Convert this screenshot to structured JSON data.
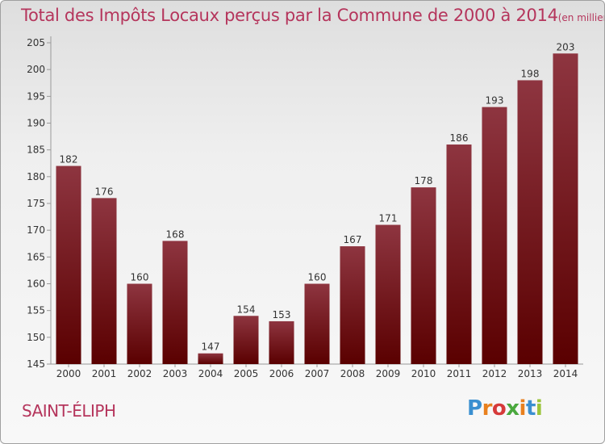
{
  "header": {
    "title": "Total des Impôts Locaux perçus par la Commune de 2000 à 2014",
    "unit": "(en milliers d'€)"
  },
  "commune": "SAINT-ÉLIPH",
  "brand": {
    "letters": [
      "P",
      "r",
      "o",
      "x",
      "i",
      "t",
      "i"
    ],
    "colors": [
      "#3a8fd0",
      "#e8801e",
      "#d63a3a",
      "#4aa83e",
      "#e8801e",
      "#3a8fd0",
      "#9bc43a"
    ]
  },
  "colors": {
    "bar_top": "#8e3540",
    "bar_bottom": "#5a0000",
    "title": "#b5355c"
  },
  "chart_data": {
    "type": "bar",
    "title": "Total des Impôts Locaux perçus par la Commune de 2000 à 2014",
    "categories": [
      "2000",
      "2001",
      "2002",
      "2003",
      "2004",
      "2005",
      "2006",
      "2007",
      "2008",
      "2009",
      "2010",
      "2011",
      "2012",
      "2013",
      "2014"
    ],
    "values": [
      182,
      176,
      160,
      168,
      147,
      154,
      153,
      160,
      167,
      171,
      178,
      186,
      193,
      198,
      203
    ],
    "ylim": [
      145,
      205
    ],
    "yticks": [
      145,
      150,
      155,
      160,
      165,
      170,
      175,
      180,
      185,
      190,
      195,
      200,
      205
    ],
    "grid": false,
    "data_labels": true
  }
}
